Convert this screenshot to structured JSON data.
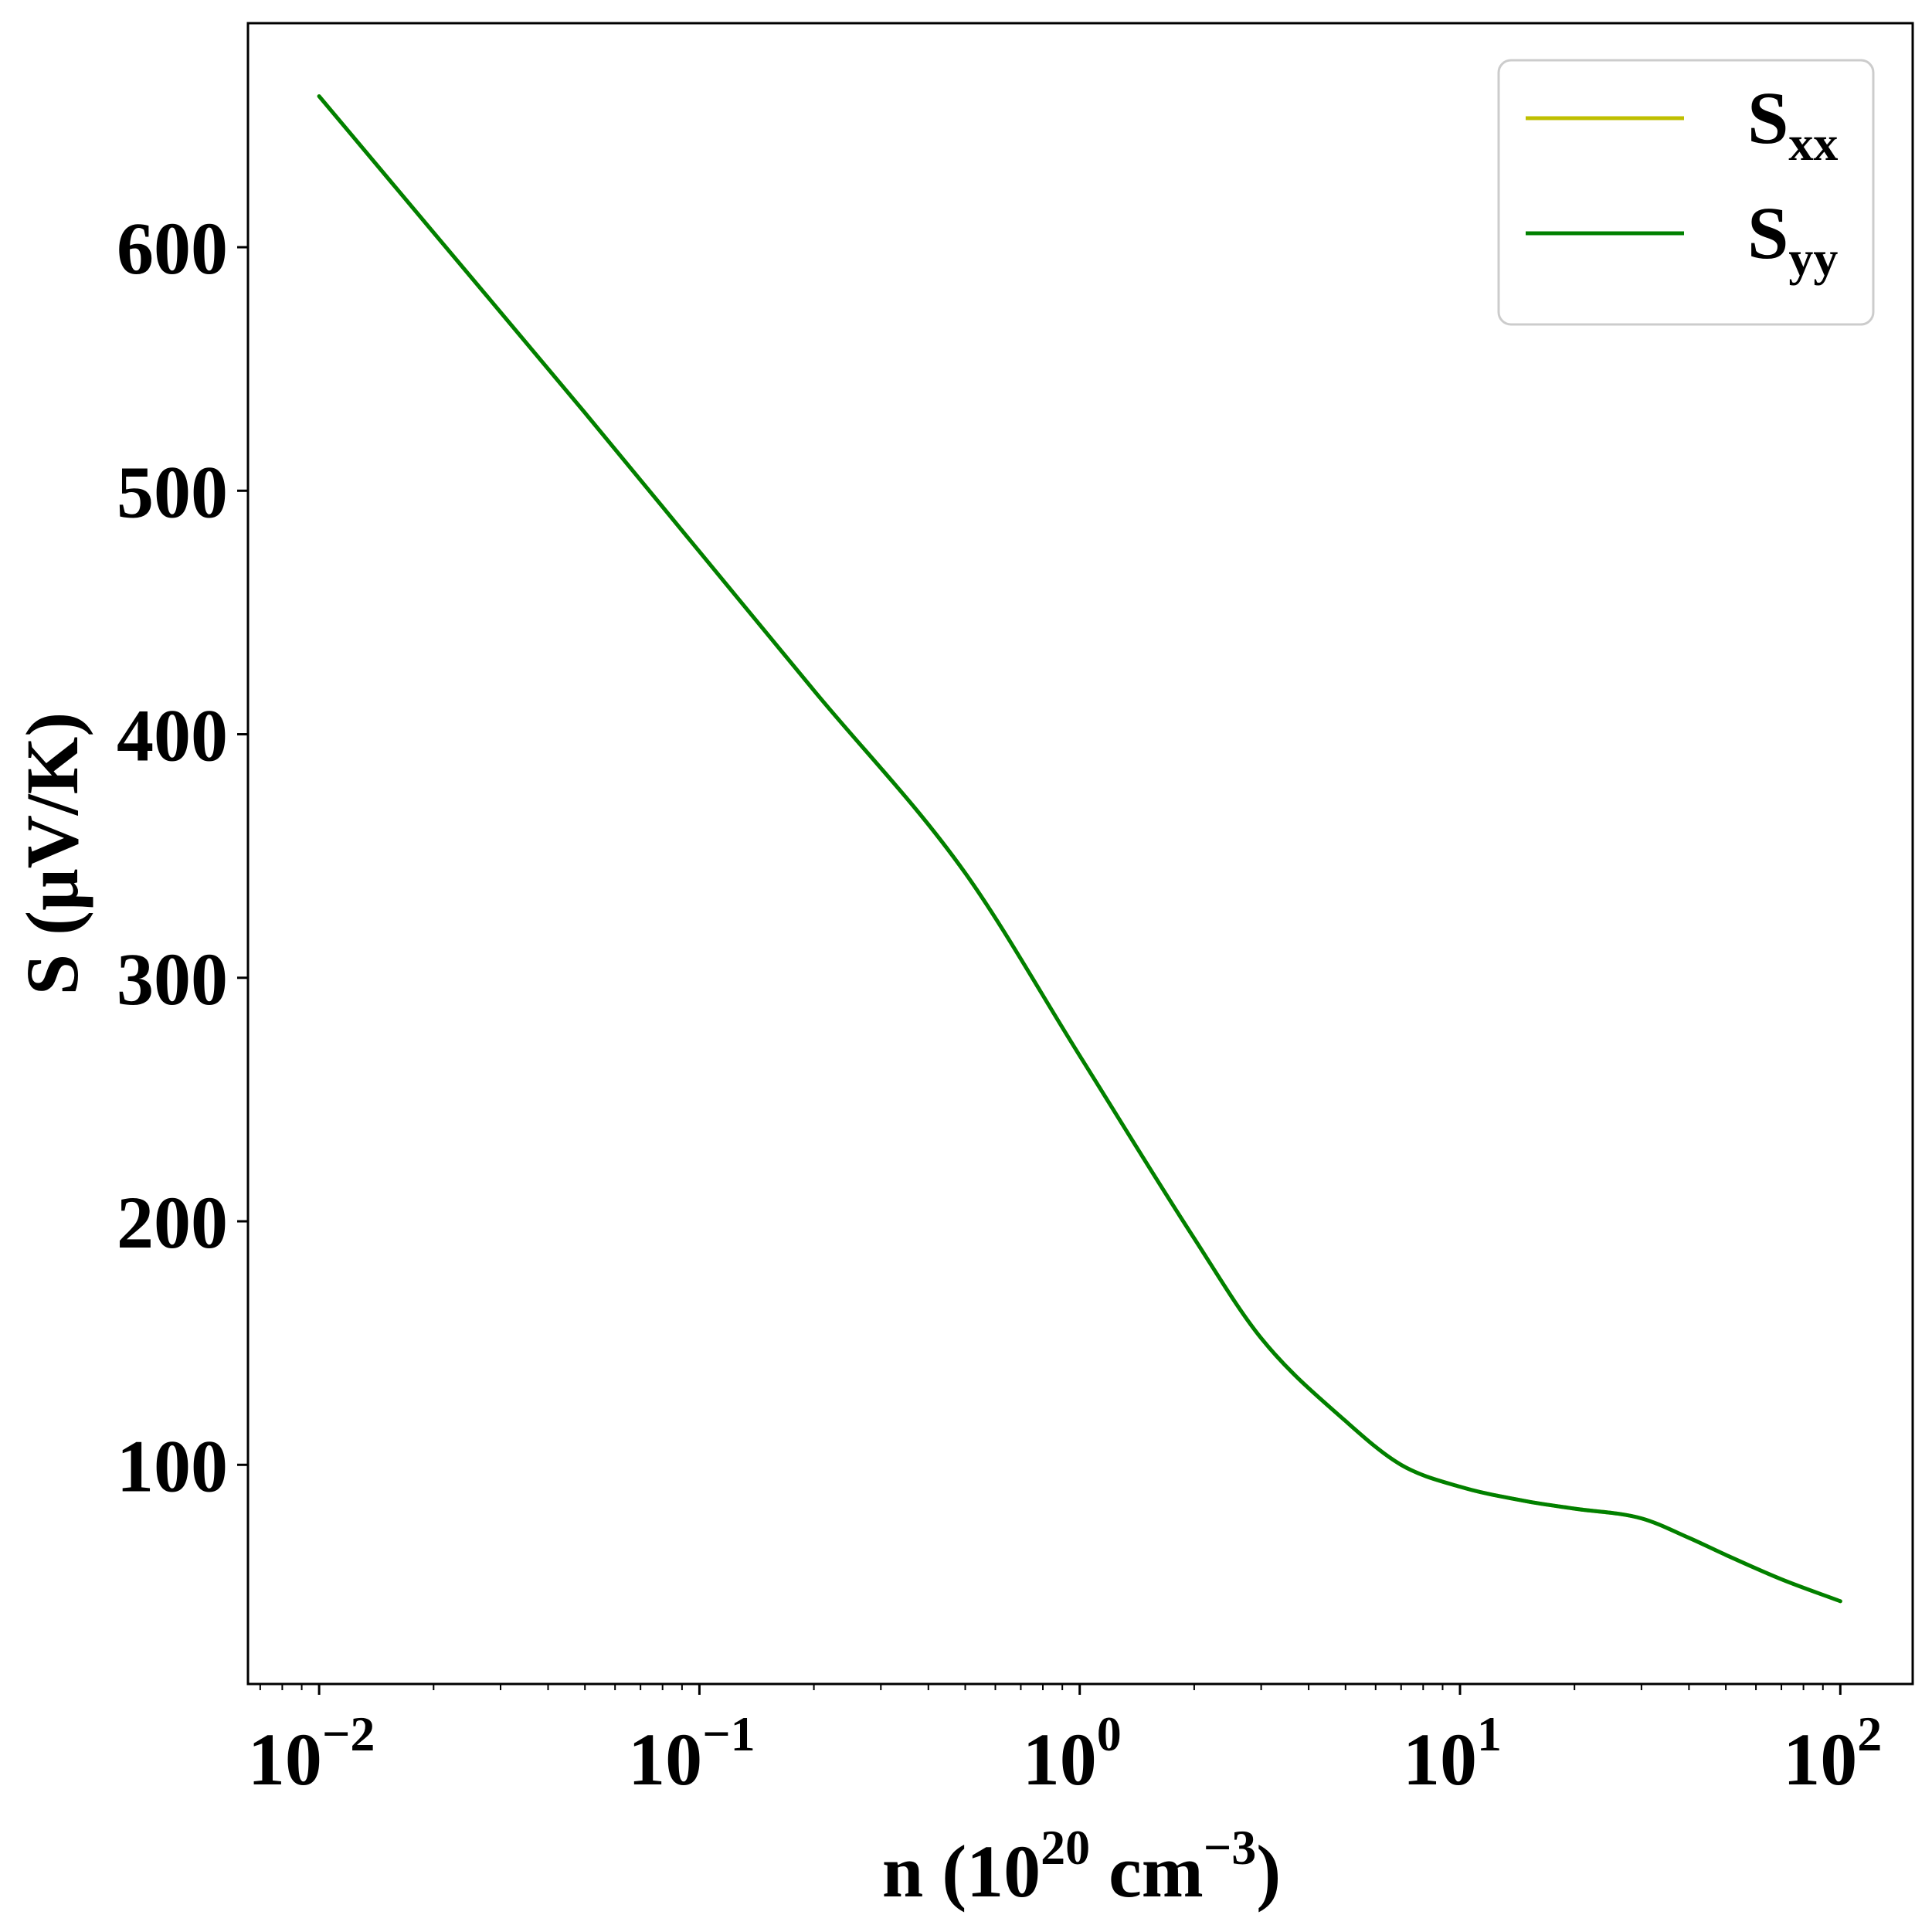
{
  "chart_data": {
    "type": "line",
    "title": "",
    "xlabel": {
      "base": "n (10",
      "sup1": "20",
      "mid": " cm",
      "sup2": "−3",
      "end": ")"
    },
    "ylabel": "S (μV/K)",
    "xscale": "log",
    "xlim": [
      0.0065,
      155
    ],
    "ylim": [
      10,
      692
    ],
    "grid": false,
    "legend_position": "top-right",
    "x_ticks": [
      {
        "value": 0.01,
        "base": "10",
        "exp": "−2"
      },
      {
        "value": 0.1,
        "base": "10",
        "exp": "−1"
      },
      {
        "value": 1,
        "base": "10",
        "exp": "0"
      },
      {
        "value": 10,
        "base": "10",
        "exp": "1"
      },
      {
        "value": 100,
        "base": "10",
        "exp": "2"
      }
    ],
    "y_ticks": [
      100,
      200,
      300,
      400,
      500,
      600
    ],
    "series": [
      {
        "name": {
          "base": "S",
          "sub": "xx"
        },
        "color": "#bfbf00",
        "x": [
          0.01,
          0.02,
          0.05,
          0.1,
          0.2,
          0.5,
          1,
          2,
          3,
          5,
          7,
          10,
          15,
          20,
          30,
          40,
          50,
          70,
          100
        ],
        "y": [
          662,
          606,
          532,
          475,
          418,
          343,
          268,
          193,
          152,
          118,
          100,
          91,
          85,
          82,
          78,
          70,
          63,
          53,
          44
        ]
      },
      {
        "name": {
          "base": "S",
          "sub": "yy"
        },
        "color": "#008000",
        "x": [
          0.01,
          0.02,
          0.05,
          0.1,
          0.2,
          0.5,
          1,
          2,
          3,
          5,
          7,
          10,
          15,
          20,
          30,
          40,
          50,
          70,
          100
        ],
        "y": [
          662,
          606,
          532,
          475,
          418,
          343,
          268,
          193,
          152,
          118,
          100,
          91,
          85,
          82,
          78,
          70,
          63,
          53,
          44
        ]
      }
    ]
  }
}
